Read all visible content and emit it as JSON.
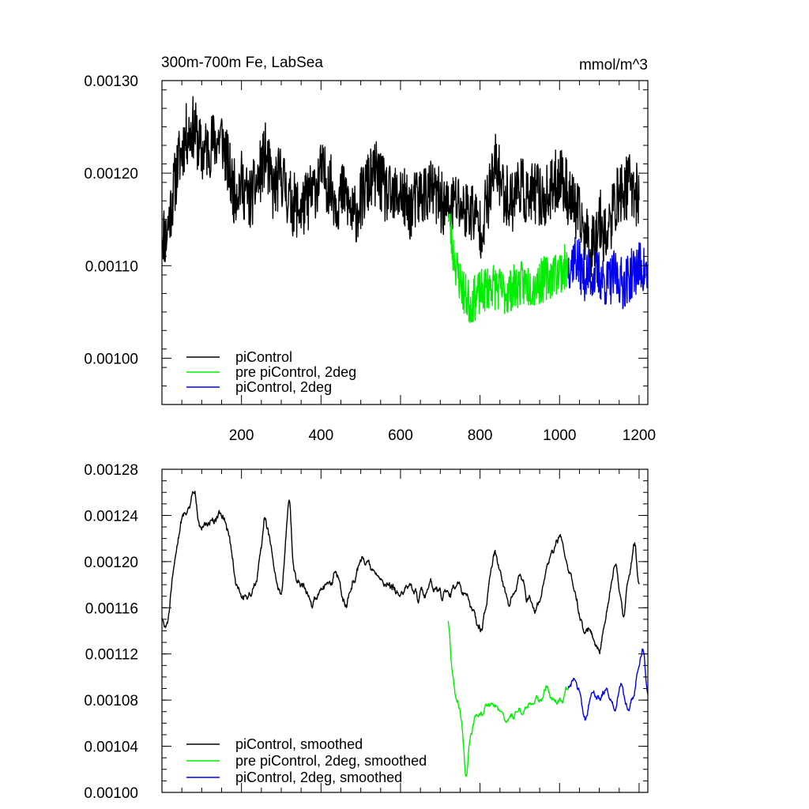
{
  "chart_data": [
    {
      "type": "line",
      "title": "300m-700m Fe, LabSea",
      "units": "mmol/m^3",
      "xlim": [
        0,
        1222
      ],
      "ylim": [
        0.00095,
        0.0013
      ],
      "yticks": [
        0.001,
        0.0011,
        0.0012,
        0.0013
      ],
      "ytick_labels": [
        "0.00100",
        "0.00110",
        "0.00120",
        "0.00130"
      ],
      "xticks": [
        200,
        400,
        600,
        800,
        1000,
        1200
      ],
      "xtick_labels": [
        "200",
        "400",
        "600",
        "800",
        "1000",
        "1200"
      ],
      "legend_position": "bottom-left",
      "series": [
        {
          "name": "piControl",
          "color": "#000000",
          "x_start": 0,
          "x_end": 1200,
          "anchors": [
            [
              0,
              0.00114
            ],
            [
              10,
              0.00113
            ],
            [
              25,
              0.00117
            ],
            [
              40,
              0.00121
            ],
            [
              60,
              0.00124
            ],
            [
              80,
              0.00125
            ],
            [
              100,
              0.00122
            ],
            [
              120,
              0.00123
            ],
            [
              150,
              0.00124
            ],
            [
              165,
              0.00121
            ],
            [
              180,
              0.00118
            ],
            [
              200,
              0.00119
            ],
            [
              220,
              0.00117
            ],
            [
              240,
              0.00119
            ],
            [
              260,
              0.00122
            ],
            [
              280,
              0.00118
            ],
            [
              300,
              0.0012
            ],
            [
              320,
              0.00117
            ],
            [
              350,
              0.00116
            ],
            [
              380,
              0.00118
            ],
            [
              400,
              0.0012
            ],
            [
              420,
              0.00119
            ],
            [
              440,
              0.00117
            ],
            [
              460,
              0.00118
            ],
            [
              480,
              0.00115
            ],
            [
              500,
              0.00117
            ],
            [
              520,
              0.00119
            ],
            [
              540,
              0.0012
            ],
            [
              560,
              0.00118
            ],
            [
              580,
              0.00117
            ],
            [
              600,
              0.00118
            ],
            [
              620,
              0.00116
            ],
            [
              640,
              0.00117
            ],
            [
              660,
              0.00118
            ],
            [
              680,
              0.00118
            ],
            [
              700,
              0.00117
            ],
            [
              720,
              0.00116
            ],
            [
              740,
              0.00117
            ],
            [
              760,
              0.00116
            ],
            [
              780,
              0.00116
            ],
            [
              800,
              0.00114
            ],
            [
              820,
              0.00117
            ],
            [
              840,
              0.00121
            ],
            [
              860,
              0.00118
            ],
            [
              880,
              0.00117
            ],
            [
              900,
              0.00119
            ],
            [
              920,
              0.00117
            ],
            [
              940,
              0.00118
            ],
            [
              960,
              0.00117
            ],
            [
              980,
              0.00118
            ],
            [
              1000,
              0.0012
            ],
            [
              1020,
              0.00118
            ],
            [
              1040,
              0.00116
            ],
            [
              1060,
              0.00114
            ],
            [
              1080,
              0.00112
            ],
            [
              1100,
              0.00115
            ],
            [
              1120,
              0.00113
            ],
            [
              1140,
              0.00117
            ],
            [
              1160,
              0.00118
            ],
            [
              1180,
              0.00119
            ],
            [
              1200,
              0.00117
            ]
          ],
          "noise": 3.5e-05,
          "seed": 11
        },
        {
          "name": "pre piControl, 2deg",
          "color": "#00ee00",
          "x_start": 720,
          "x_end": 1022,
          "anchors": [
            [
              720,
              0.00116
            ],
            [
              730,
              0.00112
            ],
            [
              745,
              0.00109
            ],
            [
              760,
              0.00107
            ],
            [
              775,
              0.00106
            ],
            [
              800,
              0.00107
            ],
            [
              830,
              0.00108
            ],
            [
              860,
              0.00107
            ],
            [
              900,
              0.00108
            ],
            [
              940,
              0.00108
            ],
            [
              980,
              0.00109
            ],
            [
              1022,
              0.0011
            ]
          ],
          "noise": 2.5e-05,
          "seed": 23
        },
        {
          "name": "piControl, 2deg",
          "color": "#0000ee",
          "x_start": 1022,
          "x_end": 1222,
          "anchors": [
            [
              1022,
              0.0011
            ],
            [
              1040,
              0.00111
            ],
            [
              1060,
              0.00109
            ],
            [
              1080,
              0.00109
            ],
            [
              1100,
              0.00109
            ],
            [
              1120,
              0.00108
            ],
            [
              1140,
              0.00109
            ],
            [
              1160,
              0.00108
            ],
            [
              1180,
              0.00109
            ],
            [
              1200,
              0.0011
            ],
            [
              1222,
              0.00109
            ]
          ],
          "noise": 2.8e-05,
          "seed": 37
        }
      ]
    },
    {
      "type": "line",
      "title": "",
      "xlim": [
        0,
        1222
      ],
      "ylim": [
        0.001,
        0.00128
      ],
      "yticks": [
        0.001,
        0.00104,
        0.00108,
        0.00112,
        0.00116,
        0.0012,
        0.00124,
        0.00128
      ],
      "ytick_labels": [
        "0.00100",
        "0.00104",
        "0.00108",
        "0.00112",
        "0.00116",
        "0.00120",
        "0.00124",
        "0.00128"
      ],
      "xticks": [
        200,
        400,
        600,
        800,
        1000,
        1200
      ],
      "legend_position": "bottom-left",
      "series": [
        {
          "name": "piControl, smoothed",
          "color": "#000000",
          "x_start": 0,
          "x_end": 1200,
          "anchors": [
            [
              0,
              0.00115
            ],
            [
              10,
              0.00114
            ],
            [
              20,
              0.00116
            ],
            [
              35,
              0.00121
            ],
            [
              50,
              0.00124
            ],
            [
              70,
              0.00125
            ],
            [
              80,
              0.00126
            ],
            [
              100,
              0.00123
            ],
            [
              120,
              0.00123
            ],
            [
              140,
              0.00124
            ],
            [
              155,
              0.00124
            ],
            [
              170,
              0.00122
            ],
            [
              185,
              0.00118
            ],
            [
              200,
              0.00117
            ],
            [
              220,
              0.00117
            ],
            [
              240,
              0.00119
            ],
            [
              260,
              0.00124
            ],
            [
              275,
              0.00121
            ],
            [
              290,
              0.00118
            ],
            [
              300,
              0.00117
            ],
            [
              310,
              0.00121
            ],
            [
              320,
              0.00126
            ],
            [
              330,
              0.0012
            ],
            [
              340,
              0.00118
            ],
            [
              360,
              0.00118
            ],
            [
              380,
              0.00116
            ],
            [
              400,
              0.00118
            ],
            [
              420,
              0.00118
            ],
            [
              440,
              0.00119
            ],
            [
              460,
              0.00116
            ],
            [
              480,
              0.00118
            ],
            [
              500,
              0.0012
            ],
            [
              520,
              0.0012
            ],
            [
              540,
              0.00119
            ],
            [
              560,
              0.00118
            ],
            [
              580,
              0.00118
            ],
            [
              600,
              0.00117
            ],
            [
              620,
              0.00118
            ],
            [
              640,
              0.00117
            ],
            [
              660,
              0.00117
            ],
            [
              680,
              0.00118
            ],
            [
              700,
              0.00117
            ],
            [
              720,
              0.00117
            ],
            [
              740,
              0.00118
            ],
            [
              760,
              0.00117
            ],
            [
              780,
              0.00116
            ],
            [
              800,
              0.00114
            ],
            [
              815,
              0.00116
            ],
            [
              835,
              0.00121
            ],
            [
              855,
              0.00118
            ],
            [
              875,
              0.00116
            ],
            [
              900,
              0.00119
            ],
            [
              920,
              0.00117
            ],
            [
              940,
              0.00116
            ],
            [
              960,
              0.00118
            ],
            [
              980,
              0.00121
            ],
            [
              1000,
              0.00122
            ],
            [
              1020,
              0.0012
            ],
            [
              1040,
              0.00117
            ],
            [
              1060,
              0.00114
            ],
            [
              1080,
              0.00114
            ],
            [
              1100,
              0.00112
            ],
            [
              1120,
              0.00116
            ],
            [
              1140,
              0.0012
            ],
            [
              1160,
              0.00115
            ],
            [
              1180,
              0.0012
            ],
            [
              1190,
              0.00122
            ],
            [
              1200,
              0.00117
            ]
          ],
          "noise": 1.2e-05,
          "seed": 51
        },
        {
          "name": "pre piControl, 2deg, smoothed",
          "color": "#00ee00",
          "x_start": 720,
          "x_end": 1022,
          "anchors": [
            [
              720,
              0.00115
            ],
            [
              728,
              0.00111
            ],
            [
              740,
              0.00108
            ],
            [
              752,
              0.00107
            ],
            [
              764,
              0.00101
            ],
            [
              775,
              0.00105
            ],
            [
              790,
              0.00107
            ],
            [
              810,
              0.00107
            ],
            [
              830,
              0.00108
            ],
            [
              850,
              0.00107
            ],
            [
              870,
              0.00106
            ],
            [
              890,
              0.00107
            ],
            [
              910,
              0.00107
            ],
            [
              930,
              0.00108
            ],
            [
              950,
              0.00108
            ],
            [
              970,
              0.00109
            ],
            [
              990,
              0.00108
            ],
            [
              1000,
              0.00108
            ],
            [
              1022,
              0.00109
            ]
          ],
          "noise": 1e-05,
          "seed": 63
        },
        {
          "name": "piControl, 2deg, smoothed",
          "color": "#0000ee",
          "x_start": 1022,
          "x_end": 1222,
          "anchors": [
            [
              1022,
              0.00109
            ],
            [
              1035,
              0.0011
            ],
            [
              1050,
              0.00109
            ],
            [
              1065,
              0.00106
            ],
            [
              1080,
              0.00109
            ],
            [
              1100,
              0.00108
            ],
            [
              1120,
              0.00109
            ],
            [
              1140,
              0.00107
            ],
            [
              1155,
              0.0011
            ],
            [
              1170,
              0.00107
            ],
            [
              1185,
              0.00108
            ],
            [
              1200,
              0.00111
            ],
            [
              1210,
              0.00113
            ],
            [
              1222,
              0.00108
            ]
          ],
          "noise": 1e-05,
          "seed": 79
        }
      ]
    }
  ]
}
